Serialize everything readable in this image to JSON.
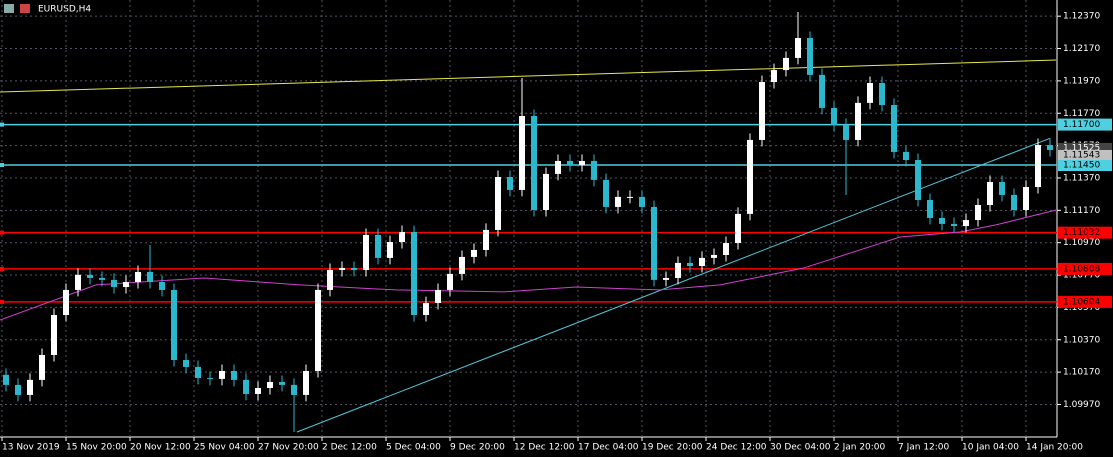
{
  "chart_data": {
    "type": "candlestick",
    "title": "EURUSD,H4",
    "bull_color": "#ffffff",
    "bear_color": "#2bb8cc",
    "open": [
      1.10153,
      1.10091,
      1.10029,
      1.10122,
      1.10276,
      1.10523,
      1.10678,
      1.10771,
      1.10752,
      1.1074,
      1.10696,
      1.10727,
      1.10789,
      1.10727,
      1.10678,
      1.10245,
      1.10202,
      1.10134,
      1.10128,
      1.10177,
      1.10122,
      1.10035,
      1.10072,
      1.10109,
      1.10091,
      1.10029,
      1.10177,
      1.10678,
      1.10801,
      1.10814,
      1.10801,
      1.11018,
      1.10876,
      1.10974,
      1.11036,
      1.10523,
      1.10597,
      1.10678,
      1.10777,
      1.10882,
      1.10925,
      1.11049,
      1.11376,
      1.11296,
      1.11753,
      1.11172,
      1.11395,
      1.11475,
      1.1145,
      1.11475,
      1.11358,
      1.11191,
      1.11253,
      1.11253,
      1.11191,
      1.1074,
      1.10752,
      1.10845,
      1.10826,
      1.10876,
      1.10894,
      1.10968,
      1.11148,
      1.11605,
      1.11963,
      1.12037,
      1.12112,
      1.12235,
      1.12007,
      1.11803,
      1.11698,
      1.11605,
      1.11834,
      1.11957,
      1.11821,
      1.11531,
      1.11481,
      1.11234,
      1.11123,
      1.11086,
      1.11073,
      1.1111,
      1.11203,
      1.11345,
      1.11265,
      1.11172,
      1.11314,
      1.11574
    ],
    "high": [
      1.10193,
      1.10131,
      1.10162,
      1.10316,
      1.10563,
      1.10718,
      1.10811,
      1.10811,
      1.10792,
      1.1078,
      1.10767,
      1.10829,
      1.10956,
      1.10767,
      1.10718,
      1.10285,
      1.10242,
      1.10174,
      1.10217,
      1.10217,
      1.10162,
      1.10112,
      1.10149,
      1.10149,
      1.10131,
      1.10217,
      1.10718,
      1.10841,
      1.10854,
      1.10854,
      1.11058,
      1.11058,
      1.11014,
      1.11076,
      1.11076,
      1.10637,
      1.10718,
      1.10817,
      1.10922,
      1.10965,
      1.11089,
      1.11416,
      1.11416,
      1.11988,
      1.11793,
      1.11435,
      1.11515,
      1.11515,
      1.11515,
      1.11515,
      1.11398,
      1.11293,
      1.11293,
      1.11293,
      1.11231,
      1.10792,
      1.10885,
      1.10885,
      1.10916,
      1.10934,
      1.11008,
      1.11188,
      1.11645,
      1.12003,
      1.12077,
      1.12152,
      1.12396,
      1.12275,
      1.12047,
      1.11843,
      1.11738,
      1.11874,
      1.11997,
      1.11997,
      1.11861,
      1.11571,
      1.11521,
      1.11274,
      1.11163,
      1.11126,
      1.1115,
      1.11243,
      1.11385,
      1.11385,
      1.11305,
      1.11354,
      1.11614,
      1.11614
    ],
    "low": [
      1.10051,
      1.09989,
      1.09989,
      1.10082,
      1.10236,
      1.10483,
      1.10638,
      1.10712,
      1.107,
      1.10656,
      1.10656,
      1.10687,
      1.10687,
      1.10638,
      1.10205,
      1.10162,
      1.10094,
      1.10088,
      1.10088,
      1.10082,
      1.09995,
      1.09995,
      1.10032,
      1.10051,
      1.098,
      1.09989,
      1.10137,
      1.10638,
      1.10761,
      1.10761,
      1.10761,
      1.10836,
      1.10836,
      1.10934,
      1.10483,
      1.10483,
      1.10557,
      1.10638,
      1.10737,
      1.10842,
      1.10885,
      1.11009,
      1.11256,
      1.11256,
      1.11132,
      1.11132,
      1.11355,
      1.1141,
      1.1141,
      1.11318,
      1.11151,
      1.11151,
      1.11213,
      1.11151,
      1.107,
      1.107,
      1.10712,
      1.10786,
      1.10786,
      1.10836,
      1.10854,
      1.10928,
      1.11108,
      1.11565,
      1.11923,
      1.11997,
      1.12072,
      1.11967,
      1.11763,
      1.11658,
      1.11265,
      1.11565,
      1.11794,
      1.11781,
      1.11491,
      1.11441,
      1.11194,
      1.11083,
      1.11046,
      1.11033,
      1.11033,
      1.1107,
      1.11163,
      1.11225,
      1.11132,
      1.11132,
      1.11274,
      1.11503
    ],
    "close": [
      1.10091,
      1.10029,
      1.10122,
      1.10276,
      1.10523,
      1.10678,
      1.10771,
      1.10752,
      1.1074,
      1.10696,
      1.10727,
      1.10789,
      1.10727,
      1.10678,
      1.10245,
      1.10202,
      1.10134,
      1.10128,
      1.10177,
      1.10122,
      1.10035,
      1.10072,
      1.10109,
      1.10091,
      1.10029,
      1.10177,
      1.10678,
      1.10801,
      1.10814,
      1.10801,
      1.11018,
      1.10876,
      1.10974,
      1.11036,
      1.10523,
      1.10597,
      1.10678,
      1.10777,
      1.10882,
      1.10925,
      1.11049,
      1.11376,
      1.11296,
      1.11753,
      1.11172,
      1.11395,
      1.11475,
      1.1145,
      1.11475,
      1.11358,
      1.11191,
      1.11253,
      1.11253,
      1.11191,
      1.1074,
      1.10752,
      1.10845,
      1.10826,
      1.10876,
      1.10894,
      1.10968,
      1.11148,
      1.11605,
      1.11963,
      1.12037,
      1.12112,
      1.12235,
      1.12007,
      1.11803,
      1.11698,
      1.11605,
      1.11834,
      1.11957,
      1.11821,
      1.11531,
      1.11481,
      1.11234,
      1.11123,
      1.11086,
      1.11073,
      1.1111,
      1.11203,
      1.11345,
      1.11265,
      1.11172,
      1.11314,
      1.11574,
      1.11543
    ],
    "ylim": [
      1.09769,
      1.1247
    ],
    "yticks": [
      {
        "value": 1.1237,
        "label": "1.12370"
      },
      {
        "value": 1.1217,
        "label": "1.12170"
      },
      {
        "value": 1.1197,
        "label": "1.11970"
      },
      {
        "value": 1.1177,
        "label": "1.11770"
      },
      {
        "value": 1.1157,
        "label": "1.11570"
      },
      {
        "value": 1.1137,
        "label": "1.11370"
      },
      {
        "value": 1.1117,
        "label": "1.11170"
      },
      {
        "value": 1.1097,
        "label": "1.10970"
      },
      {
        "value": 1.1077,
        "label": "1.10770"
      },
      {
        "value": 1.1057,
        "label": "1.10570"
      },
      {
        "value": 1.1037,
        "label": "1.10370"
      },
      {
        "value": 1.1017,
        "label": "1.10170"
      },
      {
        "value": 1.0997,
        "label": "1.09970"
      }
    ],
    "categories": [
      "13 Nov 2019",
      "15 Nov 20:00",
      "20 Nov 12:00",
      "25 Nov 04:00",
      "27 Nov 20:00",
      "2 Dec 12:00",
      "5 Dec 04:00",
      "9 Dec 20:00",
      "12 Dec 12:00",
      "17 Dec 04:00",
      "19 Dec 20:00",
      "24 Dec 12:00",
      "30 Dec 04:00",
      "2 Jan 20:00",
      "7 Jan 12:00",
      "10 Jan 04:00",
      "14 Jan 20:00"
    ],
    "grid": true,
    "levels": [
      {
        "value": 1.117,
        "label": "1.11700",
        "color": "#4fd0e0"
      },
      {
        "value": 1.1145,
        "label": "1.11450",
        "color": "#4fd0e0"
      },
      {
        "value": 1.11032,
        "label": "1.11032",
        "color": "#ff0000"
      },
      {
        "value": 1.10808,
        "label": "1.10808",
        "color": "#ff0000"
      },
      {
        "value": 1.10604,
        "label": "1.10604",
        "color": "#ff0000"
      }
    ],
    "price_labels": [
      {
        "value": 1.11525,
        "label": "1.11525"
      },
      {
        "value": 1.11543,
        "label": "1.11543"
      }
    ],
    "trendlines": [
      {
        "x": [
          0,
          88
        ],
        "values": [
          1.11901,
          1.12099
        ],
        "color": "#e8e850"
      },
      {
        "x": [
          24.75,
          87.5
        ],
        "values": [
          1.098,
          1.11615
        ],
        "color": "#4fc8e0"
      }
    ],
    "ma": {
      "color": "#d040d0",
      "x": [
        0,
        8,
        17,
        25,
        33,
        42,
        48,
        55,
        60,
        67,
        75,
        80,
        83,
        88
      ],
      "values": [
        1.10492,
        1.10709,
        1.10752,
        1.10709,
        1.10678,
        1.10666,
        1.10696,
        1.10678,
        1.10709,
        1.10814,
        1.11005,
        1.11036,
        1.1108,
        1.11172
      ]
    }
  }
}
